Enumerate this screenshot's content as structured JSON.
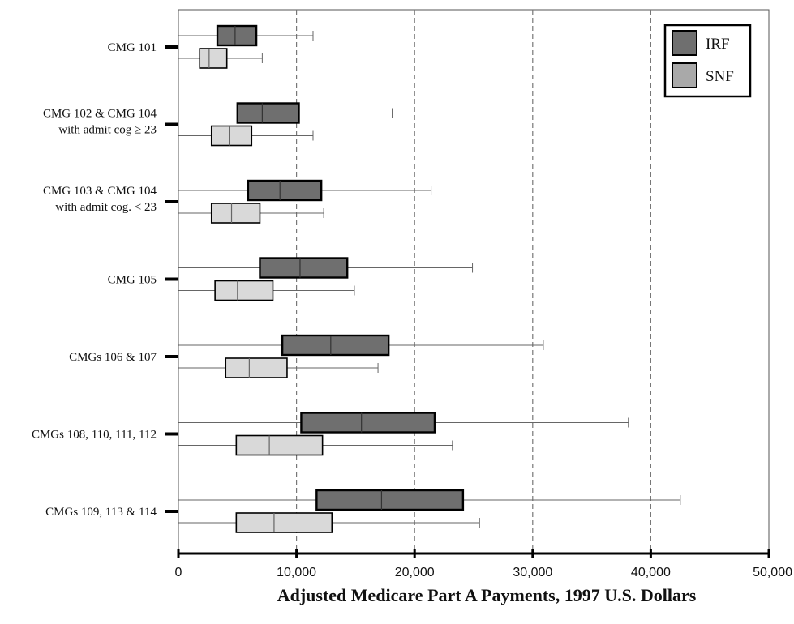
{
  "chart_data": {
    "type": "boxplot",
    "orientation": "horizontal",
    "xlabel": "Adjusted Medicare Part A Payments, 1997 U.S. Dollars",
    "xlim": [
      0,
      50000
    ],
    "xticks": [
      0,
      10000,
      20000,
      30000,
      40000,
      50000
    ],
    "xtick_labels": [
      "0",
      "10,000",
      "20,000",
      "30,000",
      "40,000",
      "50,000"
    ],
    "gridlines_at": [
      10000,
      20000,
      30000,
      40000
    ],
    "grid": "dashed vertical",
    "legend_position": "top-right",
    "categories": [
      [
        "CMG 101"
      ],
      [
        "CMG 102 & CMG 104",
        "with admit cog ≥ 23"
      ],
      [
        "CMG 103 & CMG 104",
        "with admit cog. < 23"
      ],
      [
        "CMG 105"
      ],
      [
        "CMGs 106 & 107"
      ],
      [
        "CMGs 108, 110, 111, 112"
      ],
      [
        "CMGs 109, 113 & 114"
      ]
    ],
    "series": [
      {
        "name": "IRF",
        "color": "#6f6f6f",
        "boxes": [
          {
            "min": 0,
            "q1": 3300,
            "median": 4800,
            "q3": 6600,
            "max": 11400
          },
          {
            "min": 0,
            "q1": 5000,
            "median": 7100,
            "q3": 10200,
            "max": 18100
          },
          {
            "min": 0,
            "q1": 5900,
            "median": 8600,
            "q3": 12100,
            "max": 21400
          },
          {
            "min": 0,
            "q1": 6900,
            "median": 10300,
            "q3": 14300,
            "max": 24900
          },
          {
            "min": 0,
            "q1": 8800,
            "median": 12900,
            "q3": 17800,
            "max": 30900
          },
          {
            "min": 0,
            "q1": 10400,
            "median": 15500,
            "q3": 21700,
            "max": 38100
          },
          {
            "min": 0,
            "q1": 11700,
            "median": 17200,
            "q3": 24100,
            "max": 42500
          }
        ]
      },
      {
        "name": "SNF",
        "color": "#d9d9d9",
        "boxes": [
          {
            "min": 0,
            "q1": 1800,
            "median": 2600,
            "q3": 4100,
            "max": 7100
          },
          {
            "min": 0,
            "q1": 2800,
            "median": 4300,
            "q3": 6200,
            "max": 11400
          },
          {
            "min": 0,
            "q1": 2800,
            "median": 4500,
            "q3": 6900,
            "max": 12300
          },
          {
            "min": 0,
            "q1": 3100,
            "median": 5000,
            "q3": 8000,
            "max": 14900
          },
          {
            "min": 0,
            "q1": 4000,
            "median": 6000,
            "q3": 9200,
            "max": 16900
          },
          {
            "min": 0,
            "q1": 4900,
            "median": 7700,
            "q3": 12200,
            "max": 23200
          },
          {
            "min": 0,
            "q1": 4900,
            "median": 8100,
            "q3": 13000,
            "max": 25500
          }
        ]
      }
    ]
  }
}
